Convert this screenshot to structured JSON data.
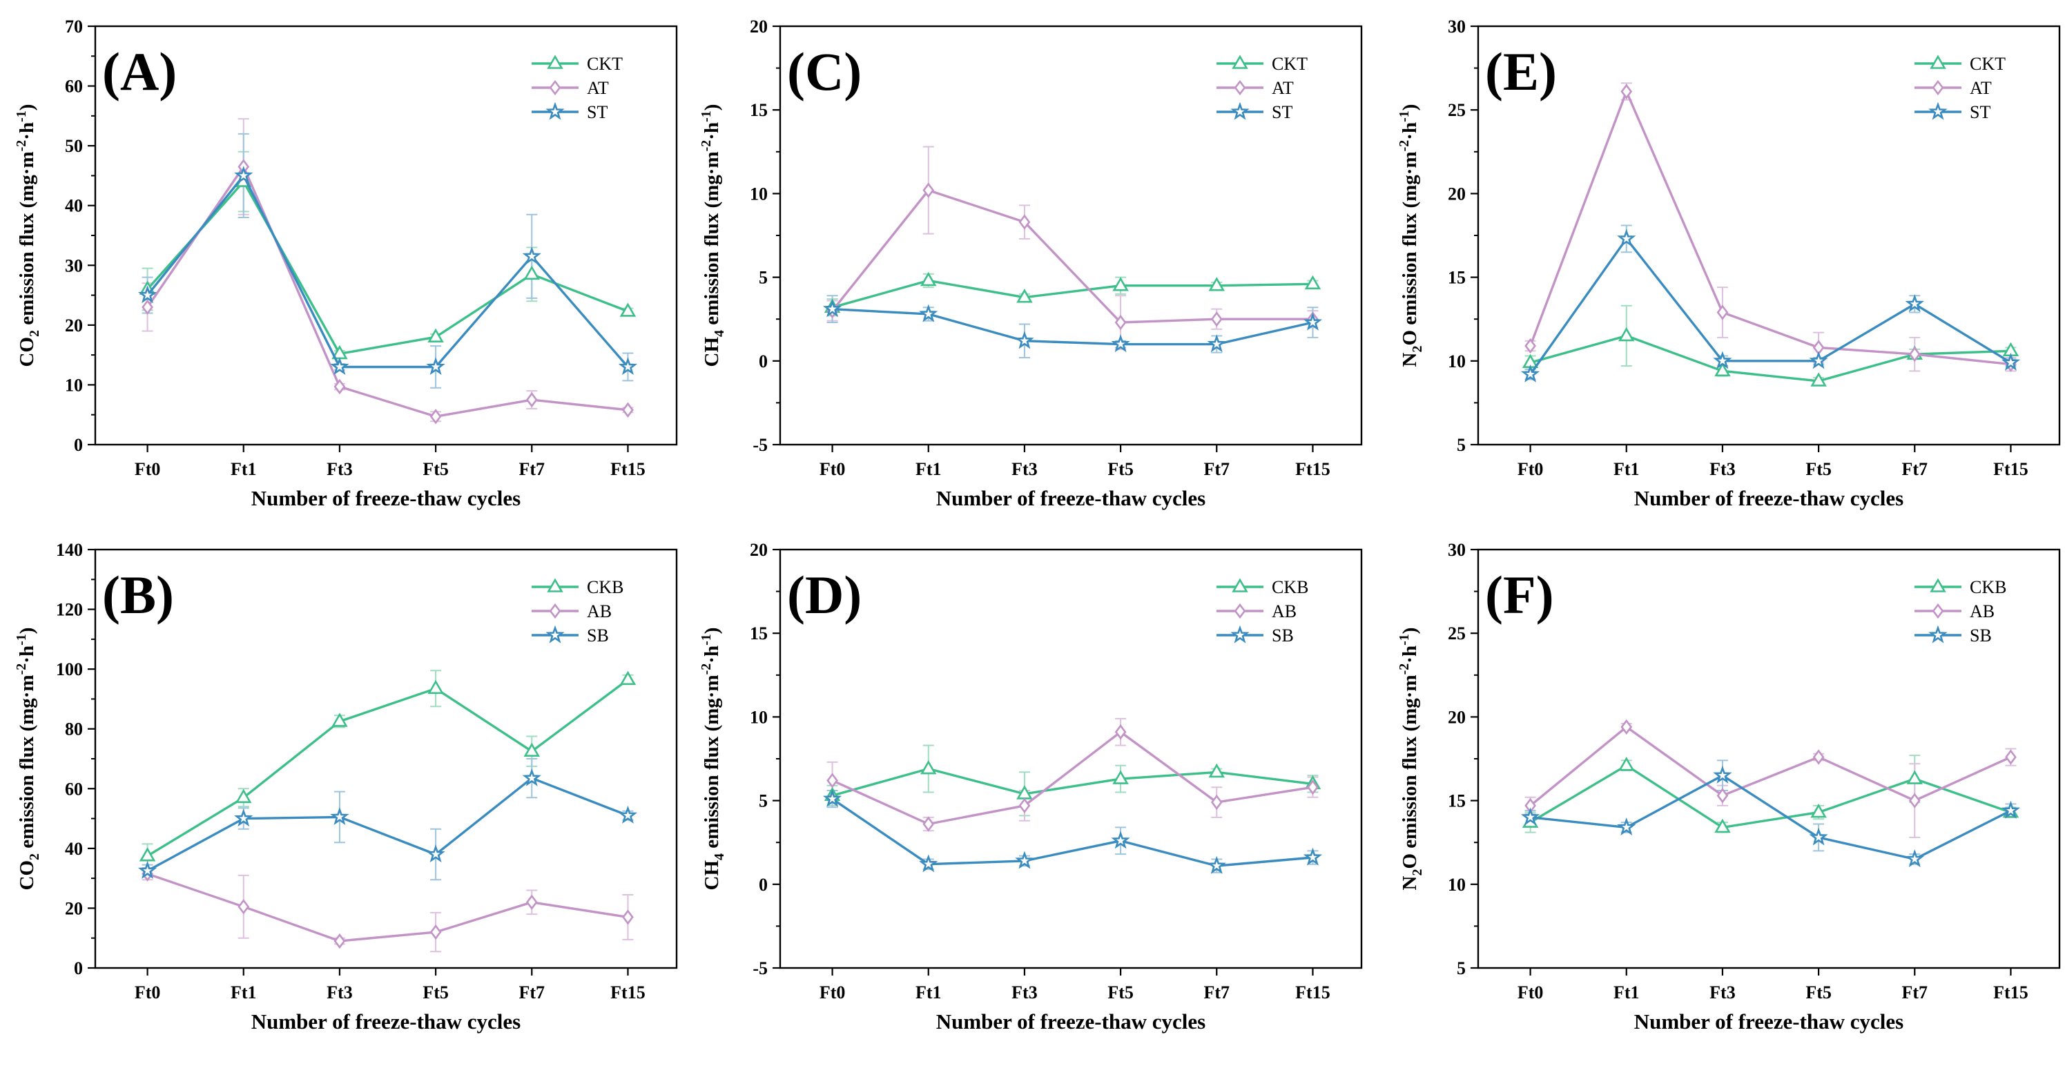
{
  "colors": {
    "s1": "#3dbf8a",
    "s2": "#c393c7",
    "s3": "#3a8cc0",
    "err_s1": "#9fdcc0",
    "err_s2": "#ddc0df",
    "err_s3": "#9cc4de"
  },
  "chart_data": [
    {
      "panel": "(A)",
      "type": "line",
      "categories": [
        "Ft0",
        "Ft1",
        "Ft3",
        "Ft5",
        "Ft7",
        "Ft15"
      ],
      "xlabel": "Number of freeze-thaw cycles",
      "ylabel": {
        "pre": "CO",
        "sub": "2",
        "post": " emission flux (mg·m",
        "sup1": "-2",
        "mid": "·h",
        "sup2": "-1",
        "end": ")"
      },
      "ylim": [
        0,
        70
      ],
      "yticks": [
        0,
        10,
        20,
        30,
        40,
        50,
        60,
        70
      ],
      "series": [
        {
          "name": "CKT",
          "marker": "triangle",
          "values": [
            26,
            44,
            15.2,
            18,
            28.5,
            22.3
          ],
          "errors": [
            3.5,
            5,
            0.5,
            0.5,
            4.5,
            0.5
          ]
        },
        {
          "name": "AT",
          "marker": "diamond",
          "values": [
            23,
            46.5,
            9.7,
            4.7,
            7.5,
            5.8
          ],
          "errors": [
            4,
            8,
            0.5,
            0.8,
            1.5,
            0.4
          ]
        },
        {
          "name": "ST",
          "marker": "star",
          "values": [
            25,
            45,
            13,
            13,
            31.5,
            13
          ],
          "errors": [
            3,
            7,
            0.5,
            3.5,
            7,
            2.3
          ]
        }
      ]
    },
    {
      "panel": "(B)",
      "type": "line",
      "categories": [
        "Ft0",
        "Ft1",
        "Ft3",
        "Ft5",
        "Ft7",
        "Ft15"
      ],
      "xlabel": "Number of freeze-thaw cycles",
      "ylabel": {
        "pre": "CO",
        "sub": "2",
        "post": " emission flux (mg·m",
        "sup1": "-2",
        "mid": "·h",
        "sup2": "-1",
        "end": ")"
      },
      "ylim": [
        0,
        140
      ],
      "yticks": [
        0,
        20,
        40,
        60,
        80,
        100,
        120,
        140
      ],
      "series": [
        {
          "name": "CKB",
          "marker": "triangle",
          "values": [
            37.5,
            57,
            82.5,
            93.5,
            72.5,
            96.5
          ],
          "errors": [
            4,
            3,
            2,
            6,
            5,
            1.5
          ]
        },
        {
          "name": "AB",
          "marker": "diamond",
          "values": [
            31.5,
            20.5,
            9,
            12,
            22,
            17
          ],
          "errors": [
            2,
            10.5,
            1,
            6.5,
            4,
            7.5
          ]
        },
        {
          "name": "SB",
          "marker": "star",
          "values": [
            32.5,
            50,
            50.5,
            38,
            63.5,
            51
          ],
          "errors": [
            2,
            3.5,
            8.5,
            8.5,
            6.5,
            1.5
          ]
        }
      ]
    },
    {
      "panel": "(C)",
      "type": "line",
      "categories": [
        "Ft0",
        "Ft1",
        "Ft3",
        "Ft5",
        "Ft7",
        "Ft15"
      ],
      "xlabel": "Number of freeze-thaw cycles",
      "ylabel": {
        "pre": "CH",
        "sub": "4",
        "post": " emission flux (mg·m",
        "sup1": "-2",
        "mid": "·h",
        "sup2": "-1",
        "end": ")"
      },
      "ylim": [
        -5,
        20
      ],
      "yticks": [
        -5,
        0,
        5,
        10,
        15,
        20
      ],
      "series": [
        {
          "name": "CKT",
          "marker": "triangle",
          "values": [
            3.2,
            4.8,
            3.8,
            4.5,
            4.5,
            4.6
          ],
          "errors": [
            0.5,
            0.4,
            0.2,
            0.5,
            0.2,
            0.2
          ]
        },
        {
          "name": "AT",
          "marker": "diamond",
          "values": [
            3.0,
            10.2,
            8.3,
            2.3,
            2.5,
            2.5
          ],
          "errors": [
            0.6,
            2.6,
            1.0,
            1.6,
            0.6,
            0.5
          ]
        },
        {
          "name": "ST",
          "marker": "star",
          "values": [
            3.1,
            2.8,
            1.2,
            1.0,
            1.0,
            2.3
          ],
          "errors": [
            0.8,
            0.4,
            1.0,
            0.2,
            0.5,
            0.9
          ]
        }
      ]
    },
    {
      "panel": "(D)",
      "type": "line",
      "categories": [
        "Ft0",
        "Ft1",
        "Ft3",
        "Ft5",
        "Ft7",
        "Ft15"
      ],
      "xlabel": "Number of freeze-thaw cycles",
      "ylabel": {
        "pre": "CH",
        "sub": "4",
        "post": " emission flux (mg·m",
        "sup1": "-2",
        "mid": "·h",
        "sup2": "-1",
        "end": ")"
      },
      "ylim": [
        -5,
        20
      ],
      "yticks": [
        -5,
        0,
        5,
        10,
        15,
        20
      ],
      "series": [
        {
          "name": "CKB",
          "marker": "triangle",
          "values": [
            5.3,
            6.9,
            5.4,
            6.3,
            6.7,
            6.0
          ],
          "errors": [
            0.6,
            1.4,
            1.3,
            0.8,
            0.2,
            0.5
          ]
        },
        {
          "name": "AB",
          "marker": "diamond",
          "values": [
            6.2,
            3.6,
            4.7,
            9.1,
            4.9,
            5.8
          ],
          "errors": [
            1.1,
            0.4,
            0.9,
            0.8,
            0.9,
            0.6
          ]
        },
        {
          "name": "SB",
          "marker": "star",
          "values": [
            5.1,
            1.2,
            1.4,
            2.6,
            1.1,
            1.6
          ],
          "errors": [
            0.5,
            0.3,
            0.3,
            0.8,
            0.4,
            0.4
          ]
        }
      ]
    },
    {
      "panel": "(E)",
      "type": "line",
      "categories": [
        "Ft0",
        "Ft1",
        "Ft3",
        "Ft5",
        "Ft7",
        "Ft15"
      ],
      "xlabel": "Number of freeze-thaw cycles",
      "ylabel": {
        "pre": "N",
        "sub": "2",
        "post": "O emission flux (mg·m",
        "sup1": "-2",
        "mid": "·h",
        "sup2": "-1",
        "end": ")"
      },
      "ylim": [
        5,
        30
      ],
      "yticks": [
        5,
        10,
        15,
        20,
        25,
        30
      ],
      "series": [
        {
          "name": "CKT",
          "marker": "triangle",
          "values": [
            9.9,
            11.5,
            9.4,
            8.8,
            10.4,
            10.6
          ],
          "errors": [
            0.4,
            1.8,
            0.3,
            0.2,
            0.3,
            0.2
          ]
        },
        {
          "name": "AT",
          "marker": "diamond",
          "values": [
            10.9,
            26.1,
            12.9,
            10.8,
            10.4,
            9.8
          ],
          "errors": [
            0.3,
            0.5,
            1.5,
            0.9,
            1.0,
            0.4
          ]
        },
        {
          "name": "ST",
          "marker": "star",
          "values": [
            9.2,
            17.3,
            10.0,
            10.0,
            13.4,
            9.9
          ],
          "errors": [
            0.3,
            0.8,
            0.3,
            0.2,
            0.5,
            0.2
          ]
        }
      ]
    },
    {
      "panel": "(F)",
      "type": "line",
      "categories": [
        "Ft0",
        "Ft1",
        "Ft3",
        "Ft5",
        "Ft7",
        "Ft15"
      ],
      "xlabel": "Number of freeze-thaw cycles",
      "ylabel": {
        "pre": "N",
        "sub": "2",
        "post": "O emission flux (mg·m",
        "sup1": "-2",
        "mid": "·h",
        "sup2": "-1",
        "end": ")"
      },
      "ylim": [
        5,
        30
      ],
      "yticks": [
        5,
        10,
        15,
        20,
        25,
        30
      ],
      "series": [
        {
          "name": "CKB",
          "marker": "triangle",
          "values": [
            13.7,
            17.1,
            13.4,
            14.3,
            16.3,
            14.3
          ],
          "errors": [
            0.6,
            0.3,
            0.3,
            0.4,
            1.4,
            0.3
          ]
        },
        {
          "name": "AB",
          "marker": "diamond",
          "values": [
            14.7,
            19.4,
            15.3,
            17.6,
            15.0,
            17.6
          ],
          "errors": [
            0.5,
            0.2,
            0.6,
            0.2,
            2.2,
            0.5
          ]
        },
        {
          "name": "SB",
          "marker": "star",
          "values": [
            14.0,
            13.4,
            16.5,
            12.8,
            11.5,
            14.4
          ],
          "errors": [
            0.4,
            0.3,
            0.9,
            0.8,
            0.3,
            0.4
          ]
        }
      ]
    }
  ]
}
